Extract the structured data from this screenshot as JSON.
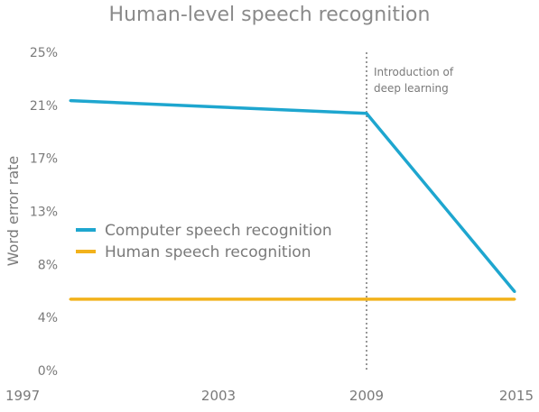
{
  "chart_data": {
    "type": "line",
    "title": "Human-level speech recognition",
    "ylabel": "Word error rate",
    "xlabel": "",
    "xlim": [
      1997,
      2015
    ],
    "ylim": [
      0,
      25
    ],
    "x_ticks": [
      "1997",
      "2003",
      "2009",
      "2015"
    ],
    "y_ticks": [
      "0%",
      "4%",
      "8%",
      "13%",
      "17%",
      "21%",
      "25%"
    ],
    "y_tick_values": [
      0,
      4.17,
      8.33,
      12.5,
      16.67,
      20.83,
      25
    ],
    "series": [
      {
        "name": "Computer speech recognition",
        "color": "#1ea6cf",
        "x": [
          1997,
          2009,
          2015
        ],
        "y": [
          21.2,
          20.2,
          6.2
        ]
      },
      {
        "name": "Human speech recognition",
        "color": "#f2b21c",
        "x": [
          1997,
          2015
        ],
        "y": [
          5.6,
          5.6
        ]
      }
    ],
    "annotations": [
      {
        "x": 2009,
        "line1": "Introduction of",
        "line2": "deep learning"
      }
    ],
    "legend": "center-left",
    "grid": false
  }
}
